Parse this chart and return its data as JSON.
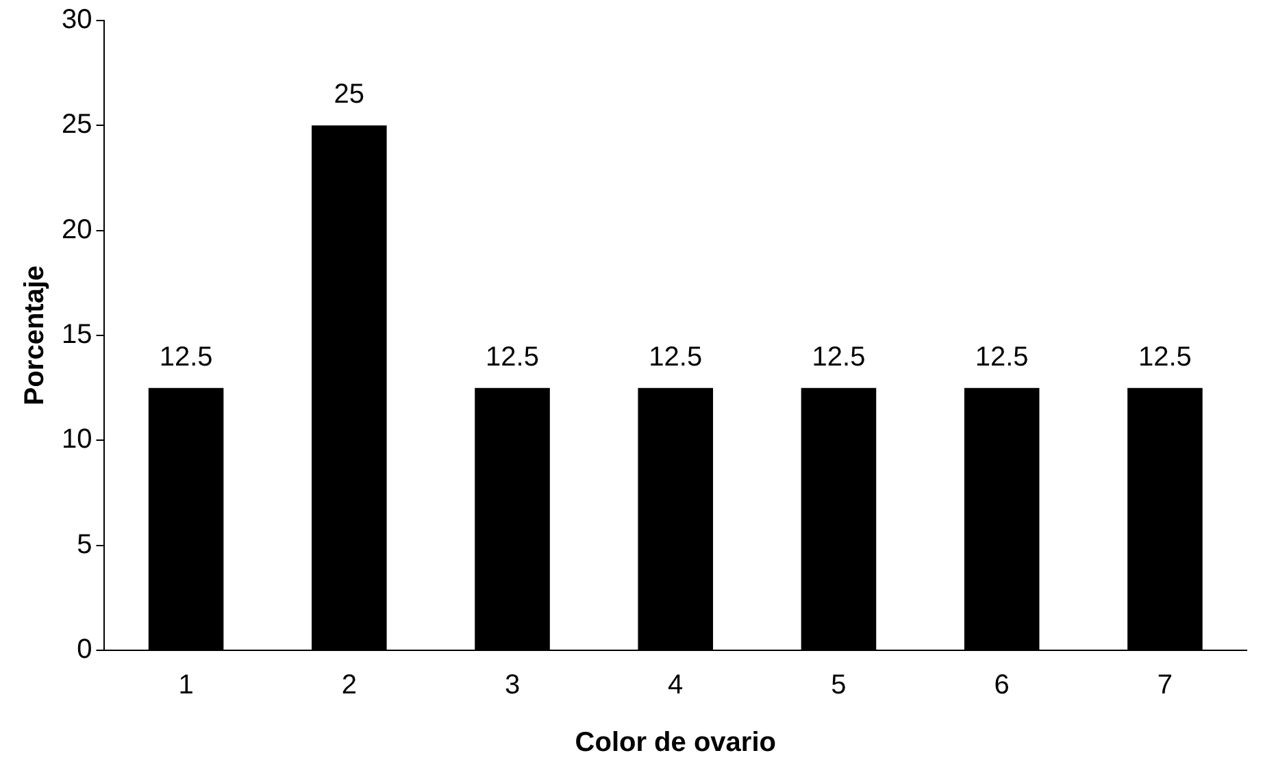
{
  "chart_data": {
    "type": "bar",
    "xlabel": "Color de ovario",
    "ylabel": "Porcentaje",
    "categories": [
      "1",
      "2",
      "3",
      "4",
      "5",
      "6",
      "7"
    ],
    "values": [
      12.5,
      25,
      12.5,
      12.5,
      12.5,
      12.5,
      12.5
    ],
    "color": "#000000",
    "ylim": [
      0,
      30
    ],
    "yticks": [
      0,
      5,
      10,
      15,
      20,
      25,
      30
    ],
    "grid": false,
    "legend": false,
    "data_labels": true
  }
}
